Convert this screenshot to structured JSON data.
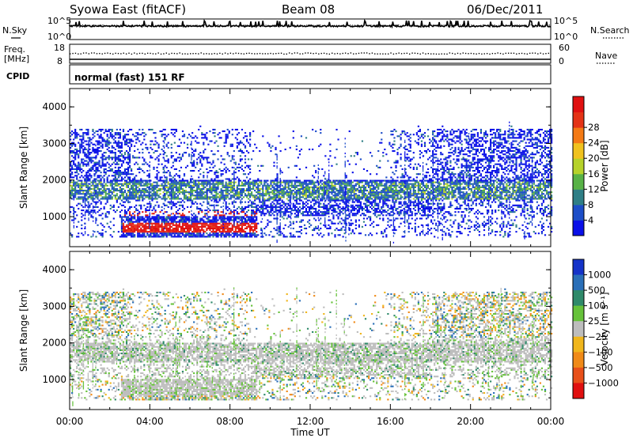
{
  "header": {
    "title": "Syowa East (fitACF)",
    "beam": "Beam 08",
    "date": "06/Dec/2011"
  },
  "side_labels": {
    "nsky": "N.Sky",
    "nsearch": "N.Search",
    "freq": "Freq.",
    "freq_unit": "[MHz]",
    "nave": "Nave",
    "cpid": "CPID",
    "cpid_value": "normal (fast) 151 RF"
  },
  "strip_ticks": {
    "noise_left": [
      "10^5",
      "10^0"
    ],
    "noise_right": [
      "10^5",
      "10^0"
    ],
    "freq_left": [
      "18",
      "8"
    ],
    "freq_right": [
      "60",
      "0"
    ]
  },
  "chart_data": [
    {
      "type": "heatmap",
      "name": "power-panel",
      "ylabel": "Slant Range [km]",
      "xlabel": "",
      "ylim": [
        180,
        4500
      ],
      "yticks": [
        1000,
        2000,
        3000,
        4000
      ],
      "xticks": [
        "00:00",
        "04:00",
        "08:00",
        "12:00",
        "16:00",
        "20:00",
        "00:00"
      ],
      "colorbar": {
        "label": "Power [dB]",
        "ticks": [
          "4",
          "8",
          "12",
          "16",
          "20",
          "24",
          "28"
        ],
        "colors": [
          "#0a10e8",
          "#1d4ec8",
          "#2f7f86",
          "#58b246",
          "#b6d22a",
          "#f0c21e",
          "#f47a15",
          "#e43316",
          "#e01010"
        ]
      }
    },
    {
      "type": "heatmap",
      "name": "velocity-panel",
      "ylabel": "Slant Range [km]",
      "xlabel": "Time UT",
      "ylim": [
        180,
        4500
      ],
      "yticks": [
        1000,
        2000,
        3000,
        4000
      ],
      "xticks": [
        "00:00",
        "04:00",
        "08:00",
        "12:00",
        "16:00",
        "20:00",
        "00:00"
      ],
      "colorbar": {
        "label": "Velocity [m s⁻¹]",
        "ticks": [
          "1000",
          "500",
          "100",
          "25",
          "−25",
          "−100",
          "−500",
          "−1000"
        ],
        "colors": [
          "#1533c8",
          "#2a6fb8",
          "#2f8a6a",
          "#66c23a",
          "#bdbdbd",
          "#f0b61c",
          "#f08a18",
          "#e8501a",
          "#e01010"
        ]
      }
    }
  ]
}
